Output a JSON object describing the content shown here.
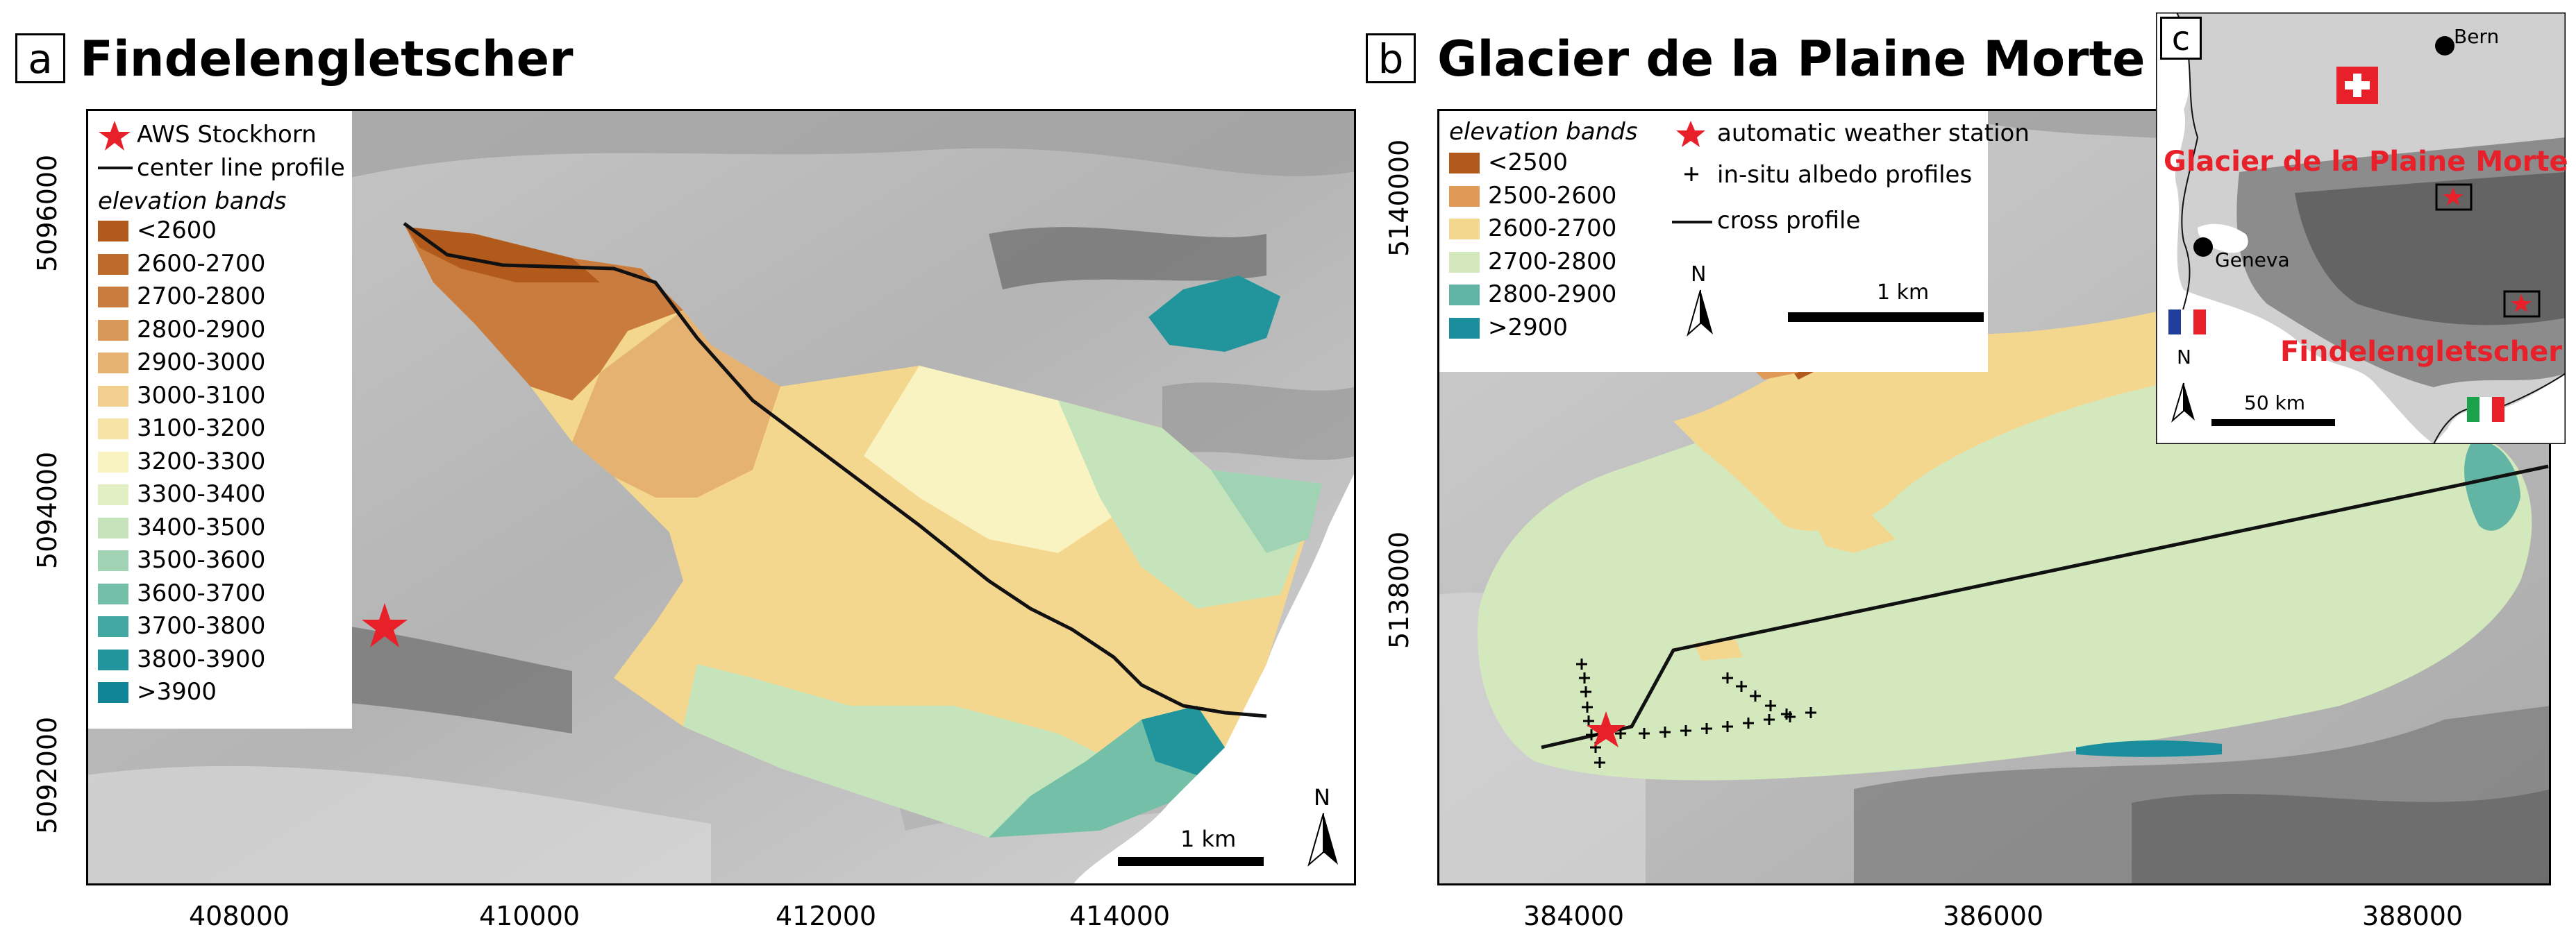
{
  "panel_a": {
    "letter": "a",
    "title": "Findelengletscher",
    "x_ticks": [
      "408000",
      "410000",
      "412000",
      "414000"
    ],
    "y_ticks": [
      "5096000",
      "5094000",
      "5092000"
    ],
    "legend": {
      "aws": "AWS Stockhorn",
      "center_line": "center line profile",
      "bands_title": "elevation bands",
      "bands": [
        {
          "label": "<2600",
          "color": "#b25a1c"
        },
        {
          "label": "2600-2700",
          "color": "#bd6a2b"
        },
        {
          "label": "2700-2800",
          "color": "#c97c3d"
        },
        {
          "label": "2800-2900",
          "color": "#d89858"
        },
        {
          "label": "2900-3000",
          "color": "#e6b272"
        },
        {
          "label": "3000-3100",
          "color": "#f1cf8f"
        },
        {
          "label": "3100-3200",
          "color": "#f6e3a6"
        },
        {
          "label": "3200-3300",
          "color": "#f8f3c0"
        },
        {
          "label": "3300-3400",
          "color": "#e2efc2"
        },
        {
          "label": "3400-3500",
          "color": "#c5e4bb"
        },
        {
          "label": "3500-3600",
          "color": "#a0d3b3"
        },
        {
          "label": "3600-3700",
          "color": "#74bfa8"
        },
        {
          "label": "3700-3800",
          "color": "#44a8a2"
        },
        {
          "label": "3800-3900",
          "color": "#22949c"
        },
        {
          "label": ">3900",
          "color": "#0f8497"
        }
      ]
    },
    "scalebar": "1 km",
    "north": "N"
  },
  "panel_b": {
    "letter": "b",
    "title": "Glacier de la Plaine Morte",
    "x_ticks": [
      "384000",
      "386000",
      "388000"
    ],
    "y_ticks": [
      "5140000",
      "5138000"
    ],
    "legend": {
      "bands_title": "elevation bands",
      "bands": [
        {
          "label": "<2500",
          "color": "#b25a1c"
        },
        {
          "label": "2500-2600",
          "color": "#e09a55"
        },
        {
          "label": "2600-2700",
          "color": "#f4d78e"
        },
        {
          "label": "2700-2800",
          "color": "#d4e8bd"
        },
        {
          "label": "2800-2900",
          "color": "#62b5a5"
        },
        {
          "label": ">2900",
          "color": "#1a8e9c"
        }
      ],
      "aws": "automatic weather station",
      "albedo": "in-situ albedo profiles",
      "cross": "cross profile"
    },
    "scalebar": "1 km",
    "north": "N"
  },
  "panel_c": {
    "letter": "c",
    "bern": "Bern",
    "geneva": "Geneva",
    "plaine_morte": "Glacier de la Plaine Morte",
    "findelen": "Findelengletscher",
    "scalebar": "50 km",
    "north": "N"
  },
  "colors": {
    "accent_red": "#e8202a",
    "glacier_line": "#111111"
  }
}
